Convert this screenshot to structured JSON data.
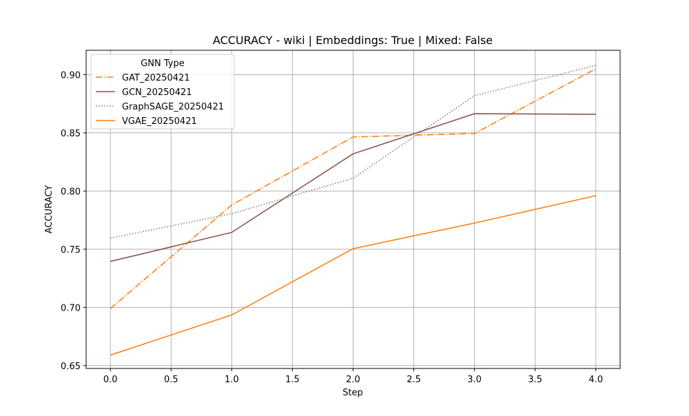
{
  "chart_data": {
    "type": "line",
    "title": "ACCURACY - wiki | Embeddings: True | Mixed: False",
    "xlabel": "Step",
    "ylabel": "ACCURACY",
    "xlim": [
      -0.2,
      4.2
    ],
    "ylim": [
      0.6475,
      0.921
    ],
    "x_ticks": [
      0.0,
      0.5,
      1.0,
      1.5,
      2.0,
      2.5,
      3.0,
      3.5,
      4.0
    ],
    "x_tick_labels": [
      "0.0",
      "0.5",
      "1.0",
      "1.5",
      "2.0",
      "2.5",
      "3.0",
      "3.5",
      "4.0"
    ],
    "y_ticks": [
      0.65,
      0.7,
      0.75,
      0.8,
      0.85,
      0.9
    ],
    "y_tick_labels": [
      "0.65",
      "0.70",
      "0.75",
      "0.80",
      "0.85",
      "0.90"
    ],
    "grid": true,
    "legend": {
      "title": "GNN Type",
      "position": "top-left"
    },
    "x": [
      0,
      1,
      2,
      3,
      4
    ],
    "series": [
      {
        "name": "GAT_20250421",
        "values": [
          0.699,
          0.788,
          0.8465,
          0.8495,
          0.905
        ],
        "color": "#ff7f0e",
        "style": "dashdot"
      },
      {
        "name": "GCN_20250421",
        "values": [
          0.7395,
          0.7645,
          0.832,
          0.8665,
          0.866
        ],
        "color": "#8c564b",
        "style": "solid"
      },
      {
        "name": "GraphSAGE_20250421",
        "values": [
          0.7595,
          0.7805,
          0.811,
          0.882,
          0.908
        ],
        "color": "#7f7f7f",
        "style": "dotted"
      },
      {
        "name": "VGAE_20250421",
        "values": [
          0.659,
          0.6935,
          0.7505,
          0.7725,
          0.796
        ],
        "color": "#ff7f0e",
        "style": "solid"
      }
    ]
  }
}
